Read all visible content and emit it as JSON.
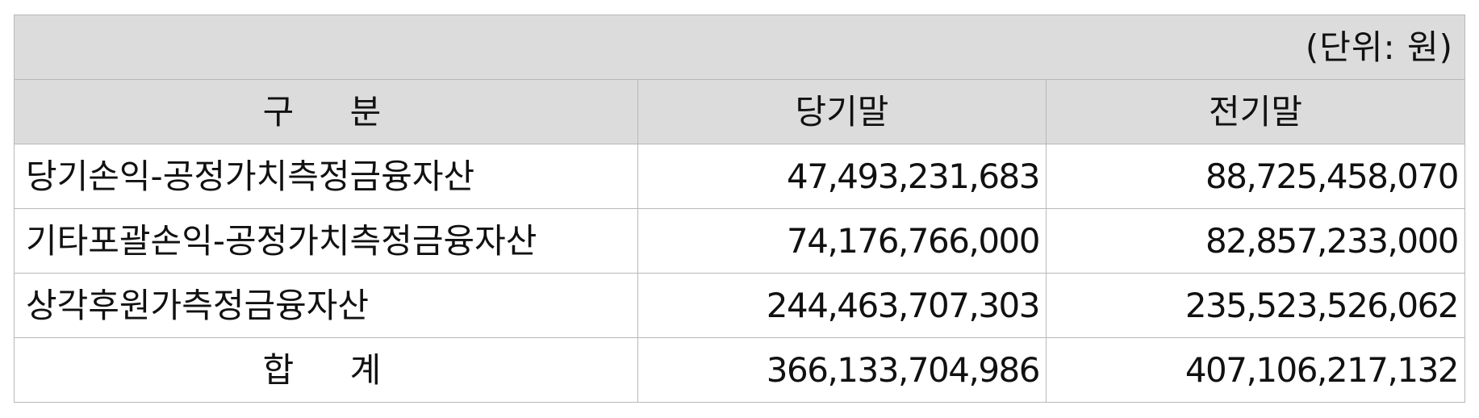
{
  "unit_note": "(단위: 원)",
  "headers": {
    "category": "구 분",
    "current": "당기말",
    "previous": "전기말"
  },
  "rows": [
    {
      "label": "당기손익-공정가치측정금융자산",
      "current": "47,493,231,683",
      "previous": "88,725,458,070"
    },
    {
      "label": "기타포괄손익-공정가치측정금융자산",
      "current": "74,176,766,000",
      "previous": "82,857,233,000"
    },
    {
      "label": "상각후원가측정금융자산",
      "current": "244,463,707,303",
      "previous": "235,523,526,062"
    }
  ],
  "total": {
    "label": "합 계",
    "current": "366,133,704,986",
    "previous": "407,106,217,132"
  }
}
